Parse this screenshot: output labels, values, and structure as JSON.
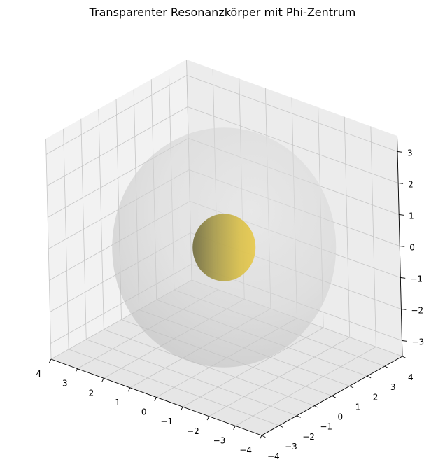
{
  "chart_data": {
    "type": "3d-surface",
    "title": "Transparenter Resonanzkörper mit Phi-Zentrum",
    "xlabel": "",
    "ylabel": "",
    "zlabel": "",
    "xlim": [
      -4,
      4
    ],
    "ylim": [
      -4,
      4
    ],
    "zlim": [
      -3.5,
      3.5
    ],
    "x_ticks": [
      "4",
      "3",
      "2",
      "1",
      "0",
      "−1",
      "−2",
      "−3",
      "−4"
    ],
    "y_ticks": [
      "−4",
      "−3",
      "−2",
      "−1",
      "0",
      "1",
      "2",
      "3",
      "4"
    ],
    "z_ticks": [
      "3",
      "2",
      "1",
      "0",
      "−1",
      "−2",
      "−3"
    ],
    "grid": true,
    "series": [
      {
        "shape": "sphere",
        "center": [
          0,
          0,
          0
        ],
        "radius": 3.2,
        "color": "#c8c8c8",
        "opacity": 0.55
      },
      {
        "shape": "sphere",
        "center": [
          0,
          0,
          0
        ],
        "radius": 0.9,
        "color": "#e6c84a",
        "opacity": 0.9
      }
    ]
  }
}
